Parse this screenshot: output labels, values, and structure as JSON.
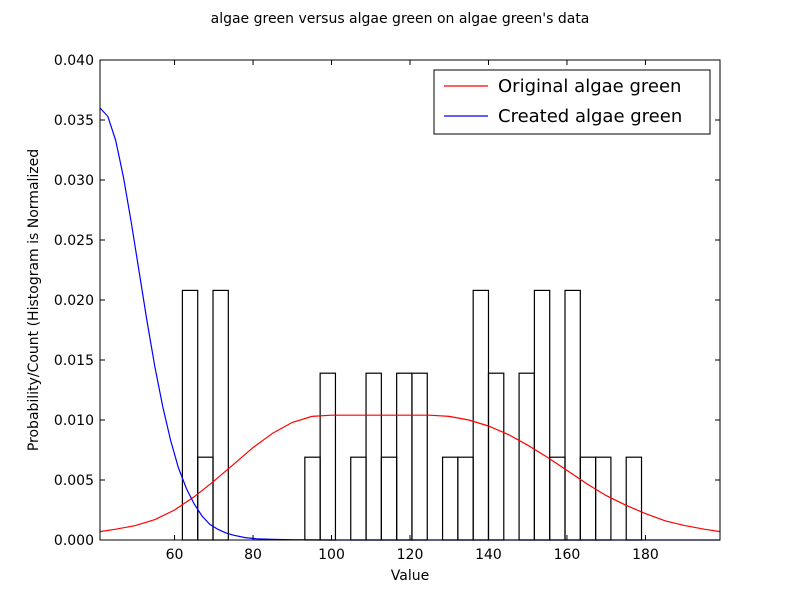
{
  "chart_data": {
    "type": "bar",
    "title": "algae green versus algae green on algae green's data",
    "xlabel": "Value",
    "ylabel": "Probability/Count (Histogram is Normalized",
    "xlim": [
      41,
      199
    ],
    "ylim": [
      0,
      0.04
    ],
    "xticks": [
      60,
      80,
      100,
      120,
      140,
      160,
      180
    ],
    "yticks": [
      0.0,
      0.005,
      0.01,
      0.015,
      0.02,
      0.025,
      0.03,
      0.035,
      0.04
    ],
    "ytick_labels": [
      "0.000",
      "0.005",
      "0.010",
      "0.015",
      "0.020",
      "0.025",
      "0.030",
      "0.035",
      "0.040"
    ],
    "histogram": {
      "bin_width": 3.9,
      "bars": [
        {
          "x0": 62.0,
          "value": 0.0208
        },
        {
          "x0": 65.9,
          "value": 0.0069
        },
        {
          "x0": 69.8,
          "value": 0.0208
        },
        {
          "x0": 93.2,
          "value": 0.0069
        },
        {
          "x0": 97.1,
          "value": 0.0139
        },
        {
          "x0": 104.9,
          "value": 0.0069
        },
        {
          "x0": 108.8,
          "value": 0.0139
        },
        {
          "x0": 112.7,
          "value": 0.0069
        },
        {
          "x0": 116.6,
          "value": 0.0139
        },
        {
          "x0": 120.5,
          "value": 0.0139
        },
        {
          "x0": 128.3,
          "value": 0.0069
        },
        {
          "x0": 132.2,
          "value": 0.0069
        },
        {
          "x0": 136.1,
          "value": 0.0208
        },
        {
          "x0": 140.0,
          "value": 0.0139
        },
        {
          "x0": 147.8,
          "value": 0.0139
        },
        {
          "x0": 151.7,
          "value": 0.0208
        },
        {
          "x0": 155.6,
          "value": 0.0069
        },
        {
          "x0": 159.5,
          "value": 0.0208
        },
        {
          "x0": 163.4,
          "value": 0.0069
        },
        {
          "x0": 167.3,
          "value": 0.0069
        },
        {
          "x0": 175.1,
          "value": 0.0069
        }
      ]
    },
    "series": [
      {
        "name": "Original algae green",
        "color": "#ff0000",
        "x": [
          41,
          45,
          50,
          55,
          60,
          65,
          70,
          75,
          80,
          85,
          90,
          95,
          100,
          105,
          110,
          115,
          120,
          125,
          130,
          135,
          140,
          145,
          150,
          155,
          160,
          165,
          170,
          175,
          180,
          185,
          190,
          195,
          199
        ],
        "y": [
          0.0007,
          0.0009,
          0.0012,
          0.0017,
          0.0025,
          0.0036,
          0.0049,
          0.0063,
          0.0077,
          0.0089,
          0.0098,
          0.0103,
          0.0104,
          0.0104,
          0.0104,
          0.0104,
          0.0104,
          0.0104,
          0.0103,
          0.01,
          0.0095,
          0.0088,
          0.0079,
          0.0069,
          0.0058,
          0.0047,
          0.0037,
          0.0029,
          0.0022,
          0.0016,
          0.0012,
          0.0009,
          0.0007
        ]
      },
      {
        "name": "Created algae green",
        "color": "#0000ff",
        "x": [
          41,
          43,
          45,
          47,
          49,
          51,
          53,
          55,
          57,
          59,
          61,
          63,
          65,
          67,
          69,
          71,
          73,
          75,
          78,
          81,
          85,
          90,
          95,
          100,
          110,
          120,
          140,
          160,
          180,
          199
        ],
        "y": [
          0.036,
          0.0353,
          0.0333,
          0.0302,
          0.0264,
          0.0223,
          0.0182,
          0.0144,
          0.0111,
          0.0083,
          0.006,
          0.0043,
          0.003,
          0.002,
          0.0013,
          0.0009,
          0.0006,
          0.0004,
          0.0002,
          0.0001,
          5e-05,
          2e-05,
          1e-05,
          0.0,
          0.0,
          0.0,
          0.0,
          0.0,
          0.0,
          0.0
        ]
      }
    ],
    "legend": {
      "position": "top-right",
      "entries": [
        "Original algae green",
        "Created algae green"
      ]
    }
  }
}
